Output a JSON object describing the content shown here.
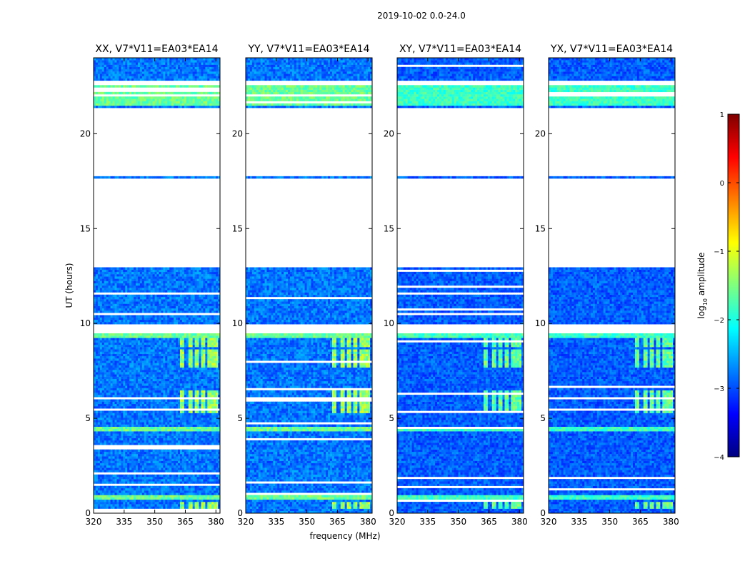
{
  "figure_title": "2019-10-02 0.0-24.0",
  "chart_data": {
    "type": "heatmap",
    "suptitle": "2019-10-02 0.0-24.0",
    "xlabel": "frequency (MHz)",
    "ylabel": "UT (hours)",
    "xlim": [
      320,
      382
    ],
    "ylim": [
      0,
      24
    ],
    "xticks": [
      320,
      335,
      350,
      365,
      380
    ],
    "yticks": [
      0,
      5,
      10,
      15,
      20
    ],
    "panels": [
      {
        "title": "XX, V7*V11=EA03*EA14",
        "polarization": "XX",
        "show_yticks": true
      },
      {
        "title": "YY, V7*V11=EA03*EA14",
        "polarization": "YY",
        "show_yticks": true
      },
      {
        "title": "XY, V7*V11=EA03*EA14",
        "polarization": "XY",
        "show_yticks": true
      },
      {
        "title": "YX, V7*V11=EA03*EA14",
        "polarization": "YX",
        "show_yticks": true
      }
    ],
    "colorbar": {
      "label": "log10 amplitude",
      "label_main": "log",
      "label_sub": "10",
      "label_rest": " amplitude",
      "range": [
        -4,
        1
      ],
      "ticks": [
        "1",
        "0",
        "−1",
        "−2",
        "−3",
        "−4"
      ],
      "tick_values": [
        1,
        0,
        -1,
        -2,
        -3,
        -4
      ],
      "colormap": "jet",
      "colormap_colors": [
        "#00007f",
        "#0000ff",
        "#007fff",
        "#00ffff",
        "#7fff7f",
        "#ffff00",
        "#ff7f00",
        "#ff0000",
        "#7f0000"
      ]
    },
    "data_coverage_hours": [
      [
        0.0,
        9.5
      ],
      [
        10.0,
        13.0
      ],
      [
        17.6,
        17.75
      ],
      [
        21.4,
        22.6
      ],
      [
        22.8,
        24.0
      ]
    ],
    "flagged_gaps_hours": [
      [
        13.0,
        17.6
      ],
      [
        17.75,
        21.4
      ]
    ],
    "bright_rfi_bands_hours": [
      [
        0.75,
        0.9
      ],
      [
        4.3,
        4.5
      ],
      [
        9.25,
        9.45
      ],
      [
        21.5,
        22.5
      ]
    ],
    "rfi_frequency_channels_mhz": [
      363,
      367,
      370,
      373,
      376,
      379
    ],
    "rfi_time_hours": [
      [
        0.2,
        0.5
      ],
      [
        5.2,
        6.4
      ],
      [
        7.6,
        8.6
      ],
      [
        8.7,
        9.2
      ]
    ]
  }
}
